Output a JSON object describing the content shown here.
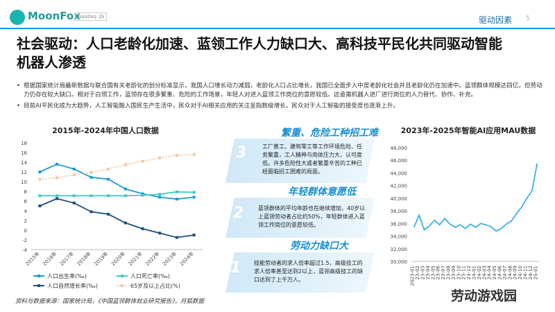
{
  "header": {
    "logo": "MoonFox",
    "ticker": "Nasdaq: JG",
    "section": "驱动因素",
    "page": "5"
  },
  "title": "社会驱动：人口老龄化加速、蓝领工作人力缺口大、高科技平民化共同驱动智能机器人渗透",
  "bullets": [
    "根据国家统计局最新数据与联合国有关老龄化的划分标准显示，我国人口增长动力减弱，老龄化人口占比增长，我国已全面步入中度老龄化社会并且老龄化仍在加速中。蓝领群体规模达四亿，但劳动力仍存在较大缺口。相对于白领工作，蓝领存在很多繁重、危险的工作场景，年轻人对进入蓝领工作岗位的意愿较低。这亟需机器人进厂进行岗位的人力替代、协作、补充。",
    "目前AI平民化成为大趋势，人工智能融入国民生产生活中，民众对于AI相关应用的关注呈指数级增长，民众对于人工智能的接受度也逐渐上升。"
  ],
  "panels": [
    {
      "number": "3",
      "heading": "繁重、危险工种招工难",
      "text": "工厂普工、建筑零工等工作环境危险、任务繁重，工人精神与肉体压力大，认可度低。许多危险性大或者繁重辛苦的工种已经面临招工困难的局面。"
    },
    {
      "number": "2",
      "heading": "年轻群体意愿低",
      "text": "蓝领群体的平均年龄也在继续增加，40岁以上蓝领劳动者占比约50%，年轻群体进入蓝领工作岗位的意愿较低。"
    },
    {
      "number": "1",
      "heading": "劳动力缺口大",
      "text": "技能劳动者的求人倍率超过1.5，高级技工的求人倍率甚至达到2以上，蓝领高级技工的缺口达到了上千万人。"
    }
  ],
  "source": "资料与数据来源：国家统计局，《中国蓝领群体就业研究报告》，月狐数据",
  "watermark": "劳动游戏园",
  "chart_data": [
    {
      "type": "line",
      "title": "2015年-2024年中国人口数据",
      "categories": [
        "2015年",
        "2016年",
        "2017年",
        "2018年",
        "2019年",
        "2020年",
        "2021年",
        "2022年",
        "2023年",
        "2024年"
      ],
      "series": [
        {
          "name": "人口出生率(‰)",
          "color": "#1a9ad6",
          "values": [
            12.0,
            13.6,
            12.6,
            10.9,
            10.5,
            8.5,
            7.5,
            6.8,
            6.4,
            6.8
          ]
        },
        {
          "name": "人口死亡率(‰)",
          "color": "#46c9c2",
          "values": [
            7.1,
            7.1,
            7.1,
            7.1,
            7.1,
            7.1,
            7.2,
            7.4,
            7.9,
            7.8
          ]
        },
        {
          "name": "人口自然增长率(‰)",
          "color": "#1f4e79",
          "values": [
            5.0,
            6.5,
            5.6,
            3.8,
            3.3,
            1.5,
            0.3,
            -0.6,
            -1.5,
            -1.0
          ]
        },
        {
          "name": "65岁及以上占比(%)",
          "color": "#f5c6a5",
          "line_style": "dotted",
          "values": [
            10.5,
            10.8,
            11.4,
            11.9,
            12.6,
            13.5,
            14.2,
            14.9,
            15.4,
            15.6
          ]
        }
      ],
      "ylim": [
        -4,
        18
      ],
      "yticks": [
        -4,
        -2,
        0,
        2,
        4,
        6,
        8,
        10,
        12,
        14,
        16,
        18
      ],
      "grid": false,
      "legend": "bottom"
    },
    {
      "type": "line",
      "title": "2023年-2025年智能AI应用MAU数据",
      "categories": [
        "2023-01",
        "23-02",
        "23-03",
        "23-04",
        "23-05",
        "23-06",
        "23-07",
        "23-08",
        "23-09",
        "23-10",
        "23-11",
        "23-12",
        "24-01",
        "24-02",
        "24-03",
        "24-04",
        "24-05",
        "24-06",
        "24-07",
        "24-08",
        "24-09",
        "24-10",
        "24-11",
        "24-12",
        "25-01"
      ],
      "values": [
        35400,
        37300,
        35000,
        35600,
        36500,
        35800,
        36800,
        35900,
        35400,
        35800,
        35200,
        35900,
        35400,
        36000,
        35800,
        35500,
        34800,
        35200,
        35900,
        36400,
        37600,
        38600,
        40000,
        41200,
        45500
      ],
      "color": "#3ab0e8",
      "ylim": [
        30000,
        48000
      ],
      "yticks": [
        {
          "value": 30000,
          "label": "30,000"
        },
        {
          "value": 32000,
          "label": "32,000"
        },
        {
          "value": 34000,
          "label": "34,000"
        },
        {
          "value": 36000,
          "label": "36,000"
        },
        {
          "value": 38000,
          "label": "38,000"
        },
        {
          "value": 40000,
          "label": "40,000"
        },
        {
          "value": 42000,
          "label": "42,000"
        },
        {
          "value": 44000,
          "label": "44,000"
        },
        {
          "value": 46000,
          "label": "46,000"
        },
        {
          "value": 48000,
          "label": "48,000"
        }
      ],
      "grid": false
    }
  ]
}
